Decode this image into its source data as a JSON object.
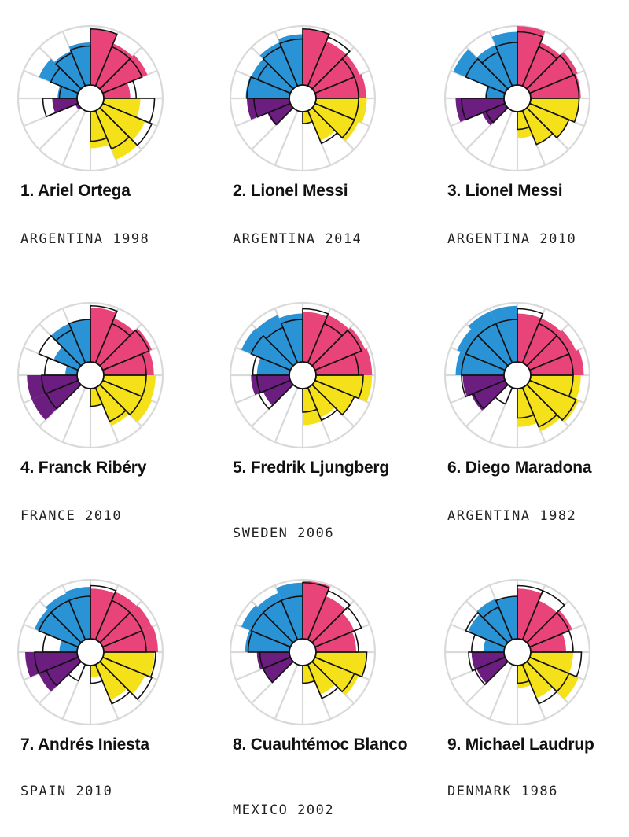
{
  "colors": {
    "attack": "#e8447a",
    "creativity": "#2a93d5",
    "defense": "#6b1d80",
    "shooting": "#f5e11a",
    "outline": "#111111",
    "grid": "#d9d9d9"
  },
  "players": [
    {
      "rank_name": "1. Ariel Ortega",
      "team_year": "ARGENTINA 1998"
    },
    {
      "rank_name": "2. Lionel Messi",
      "team_year": "ARGENTINA 2014"
    },
    {
      "rank_name": "3. Lionel Messi",
      "team_year": "ARGENTINA 2010"
    },
    {
      "rank_name": "4. Franck Ribéry",
      "team_year": "FRANCE 2010"
    },
    {
      "rank_name": "5. Fredrik Ljungberg",
      "team_year": "SWEDEN 2006"
    },
    {
      "rank_name": "6. Diego Maradona",
      "team_year": "ARGENTINA 1982"
    },
    {
      "rank_name": "7. Andrés Iniesta",
      "team_year": "SPAIN 2010"
    },
    {
      "rank_name": "8. Cuauhtémoc Blanco",
      "team_year": "MEXICO 2002"
    },
    {
      "rank_name": "9. Michael Laudrup",
      "team_year": "DENMARK 1986"
    }
  ],
  "chart_data": {
    "type": "radial-bar",
    "sectors_per_chart": 16,
    "groups": [
      "attack",
      "attack",
      "attack",
      "attack",
      "shooting",
      "shooting",
      "shooting",
      "shooting",
      "none",
      "none",
      "defense",
      "defense",
      "creativity",
      "creativity",
      "creativity",
      "creativity"
    ],
    "max_value": 1.0,
    "charts": [
      {
        "fill": [
          0.95,
          0.78,
          0.82,
          0.45,
          0.62,
          0.78,
          0.9,
          0.62,
          0,
          0,
          0.05,
          0.42,
          0.33,
          0.72,
          0.64,
          0.72
        ],
        "outline": [
          0.95,
          0.72,
          0.72,
          0.55,
          0.86,
          0.9,
          0.7,
          0.5,
          0,
          0,
          0,
          0.58,
          0.3,
          0.5,
          0.6,
          0.66
        ]
      },
      {
        "fill": [
          0.95,
          0.82,
          0.82,
          0.85,
          0.86,
          0.8,
          0.55,
          0.2,
          0,
          0,
          0.42,
          0.72,
          0.74,
          0.72,
          0.8,
          0.86
        ],
        "outline": [
          0.95,
          0.9,
          0.72,
          0.72,
          0.72,
          0.72,
          0.6,
          0.2,
          0,
          0,
          0.4,
          0.6,
          0.72,
          0.6,
          0.72,
          0.78
        ]
      },
      {
        "fill": [
          1.0,
          0.8,
          0.88,
          0.85,
          0.82,
          0.72,
          0.62,
          0.45,
          0,
          0,
          0.42,
          0.82,
          0.32,
          0.95,
          0.75,
          0.9
        ],
        "outline": [
          0.9,
          0.72,
          0.8,
          0.82,
          0.82,
          0.72,
          0.62,
          0.3,
          0,
          0,
          0.35,
          0.72,
          0.3,
          0.72,
          0.62,
          0.72
        ]
      },
      {
        "fill": [
          0.92,
          0.82,
          0.9,
          0.85,
          0.88,
          0.9,
          0.7,
          0.3,
          0,
          0,
          0.85,
          0.85,
          0.2,
          0.45,
          0.72,
          0.72
        ],
        "outline": [
          0.95,
          0.72,
          0.85,
          0.72,
          0.72,
          0.72,
          0.62,
          0.3,
          0,
          0,
          0.58,
          0.6,
          0.55,
          0.72,
          0.6,
          0.72
        ]
      },
      {
        "fill": [
          0.85,
          0.88,
          0.92,
          0.95,
          0.95,
          0.72,
          0.55,
          0.62,
          0,
          0,
          0.5,
          0.65,
          0.55,
          0.9,
          0.88,
          0.82
        ],
        "outline": [
          0.9,
          0.72,
          0.85,
          0.72,
          0.8,
          0.72,
          0.6,
          0.4,
          0,
          0,
          0.58,
          0.55,
          0.62,
          0.72,
          0.65,
          0.72
        ]
      },
      {
        "fill": [
          0.82,
          0.82,
          0.85,
          0.9,
          0.85,
          0.9,
          0.8,
          0.65,
          0,
          0.35,
          0.62,
          0.7,
          0.82,
          0.88,
          0.95,
          0.95
        ],
        "outline": [
          0.9,
          0.72,
          0.72,
          0.72,
          0.72,
          0.85,
          0.72,
          0.5,
          0,
          0.3,
          0.58,
          0.72,
          0.72,
          0.72,
          0.72,
          0.72
        ]
      },
      {
        "fill": [
          0.85,
          0.88,
          0.9,
          0.92,
          0.86,
          0.78,
          0.65,
          0.2,
          0,
          0.3,
          0.72,
          0.88,
          0.3,
          0.8,
          0.85,
          0.88
        ],
        "outline": [
          0.9,
          0.72,
          0.72,
          0.72,
          0.88,
          0.9,
          0.72,
          0.3,
          0,
          0.3,
          0.58,
          0.72,
          0.58,
          0.72,
          0.72,
          0.72
        ]
      },
      {
        "fill": [
          0.98,
          0.8,
          0.72,
          0.68,
          0.86,
          0.8,
          0.55,
          0.3,
          0,
          0,
          0.5,
          0.55,
          0.75,
          0.9,
          0.86,
          0.95
        ],
        "outline": [
          0.95,
          0.9,
          0.85,
          0.72,
          0.86,
          0.72,
          0.62,
          0.3,
          0,
          0,
          0.5,
          0.5,
          0.7,
          0.72,
          0.72,
          0.72
        ]
      },
      {
        "fill": [
          0.85,
          0.72,
          0.78,
          0.6,
          0.72,
          0.9,
          0.62,
          0.38,
          0,
          0,
          0.52,
          0.55,
          0.35,
          0.68,
          0.75,
          0.72
        ],
        "outline": [
          0.9,
          0.9,
          0.72,
          0.72,
          0.86,
          0.72,
          0.72,
          0.3,
          0,
          0,
          0.55,
          0.6,
          0.55,
          0.72,
          0.6,
          0.72
        ]
      }
    ]
  }
}
